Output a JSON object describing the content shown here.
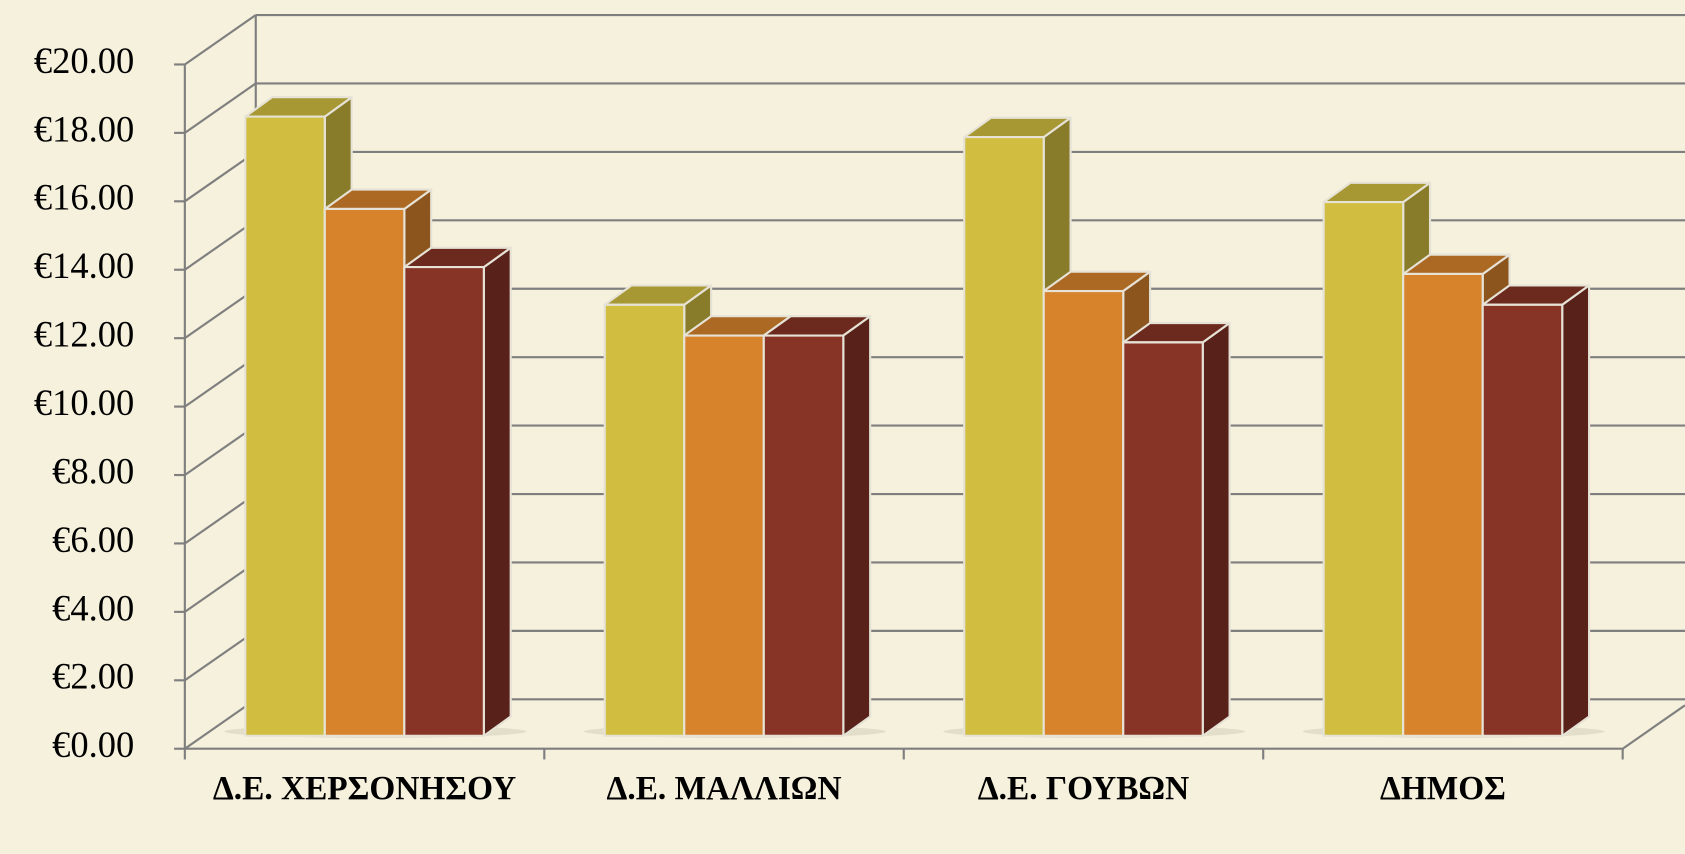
{
  "chart_data": {
    "type": "bar3d",
    "categories": [
      "Δ.Ε. ΧΕΡΣΟΝΗΣΟΥ",
      "Δ.Ε. ΜΑΛΛΙΩΝ",
      "Δ.Ε. ΓΟΥΒΩΝ",
      "ΔΗΜΟΣ"
    ],
    "series": [
      {
        "color": "#d1be40",
        "values": [
          18.1,
          12.6,
          17.5,
          15.6
        ]
      },
      {
        "color": "#d6832c",
        "values": [
          15.4,
          11.7,
          13.0,
          13.5
        ]
      },
      {
        "color": "#873326",
        "values": [
          13.7,
          11.7,
          11.5,
          12.6
        ]
      }
    ],
    "ylim": [
      0,
      20
    ],
    "yticks": [
      {
        "value": 0,
        "label": "€0.00"
      },
      {
        "value": 2,
        "label": "€2.00"
      },
      {
        "value": 4,
        "label": "€4.00"
      },
      {
        "value": 6,
        "label": "€6.00"
      },
      {
        "value": 8,
        "label": "€8.00"
      },
      {
        "value": 10,
        "label": "€10.00"
      },
      {
        "value": 12,
        "label": "€12.00"
      },
      {
        "value": 14,
        "label": "€14.00"
      },
      {
        "value": 16,
        "label": "€16.00"
      },
      {
        "value": 18,
        "label": "€18.00"
      },
      {
        "value": 20,
        "label": "€20.00"
      }
    ],
    "grid": true
  }
}
